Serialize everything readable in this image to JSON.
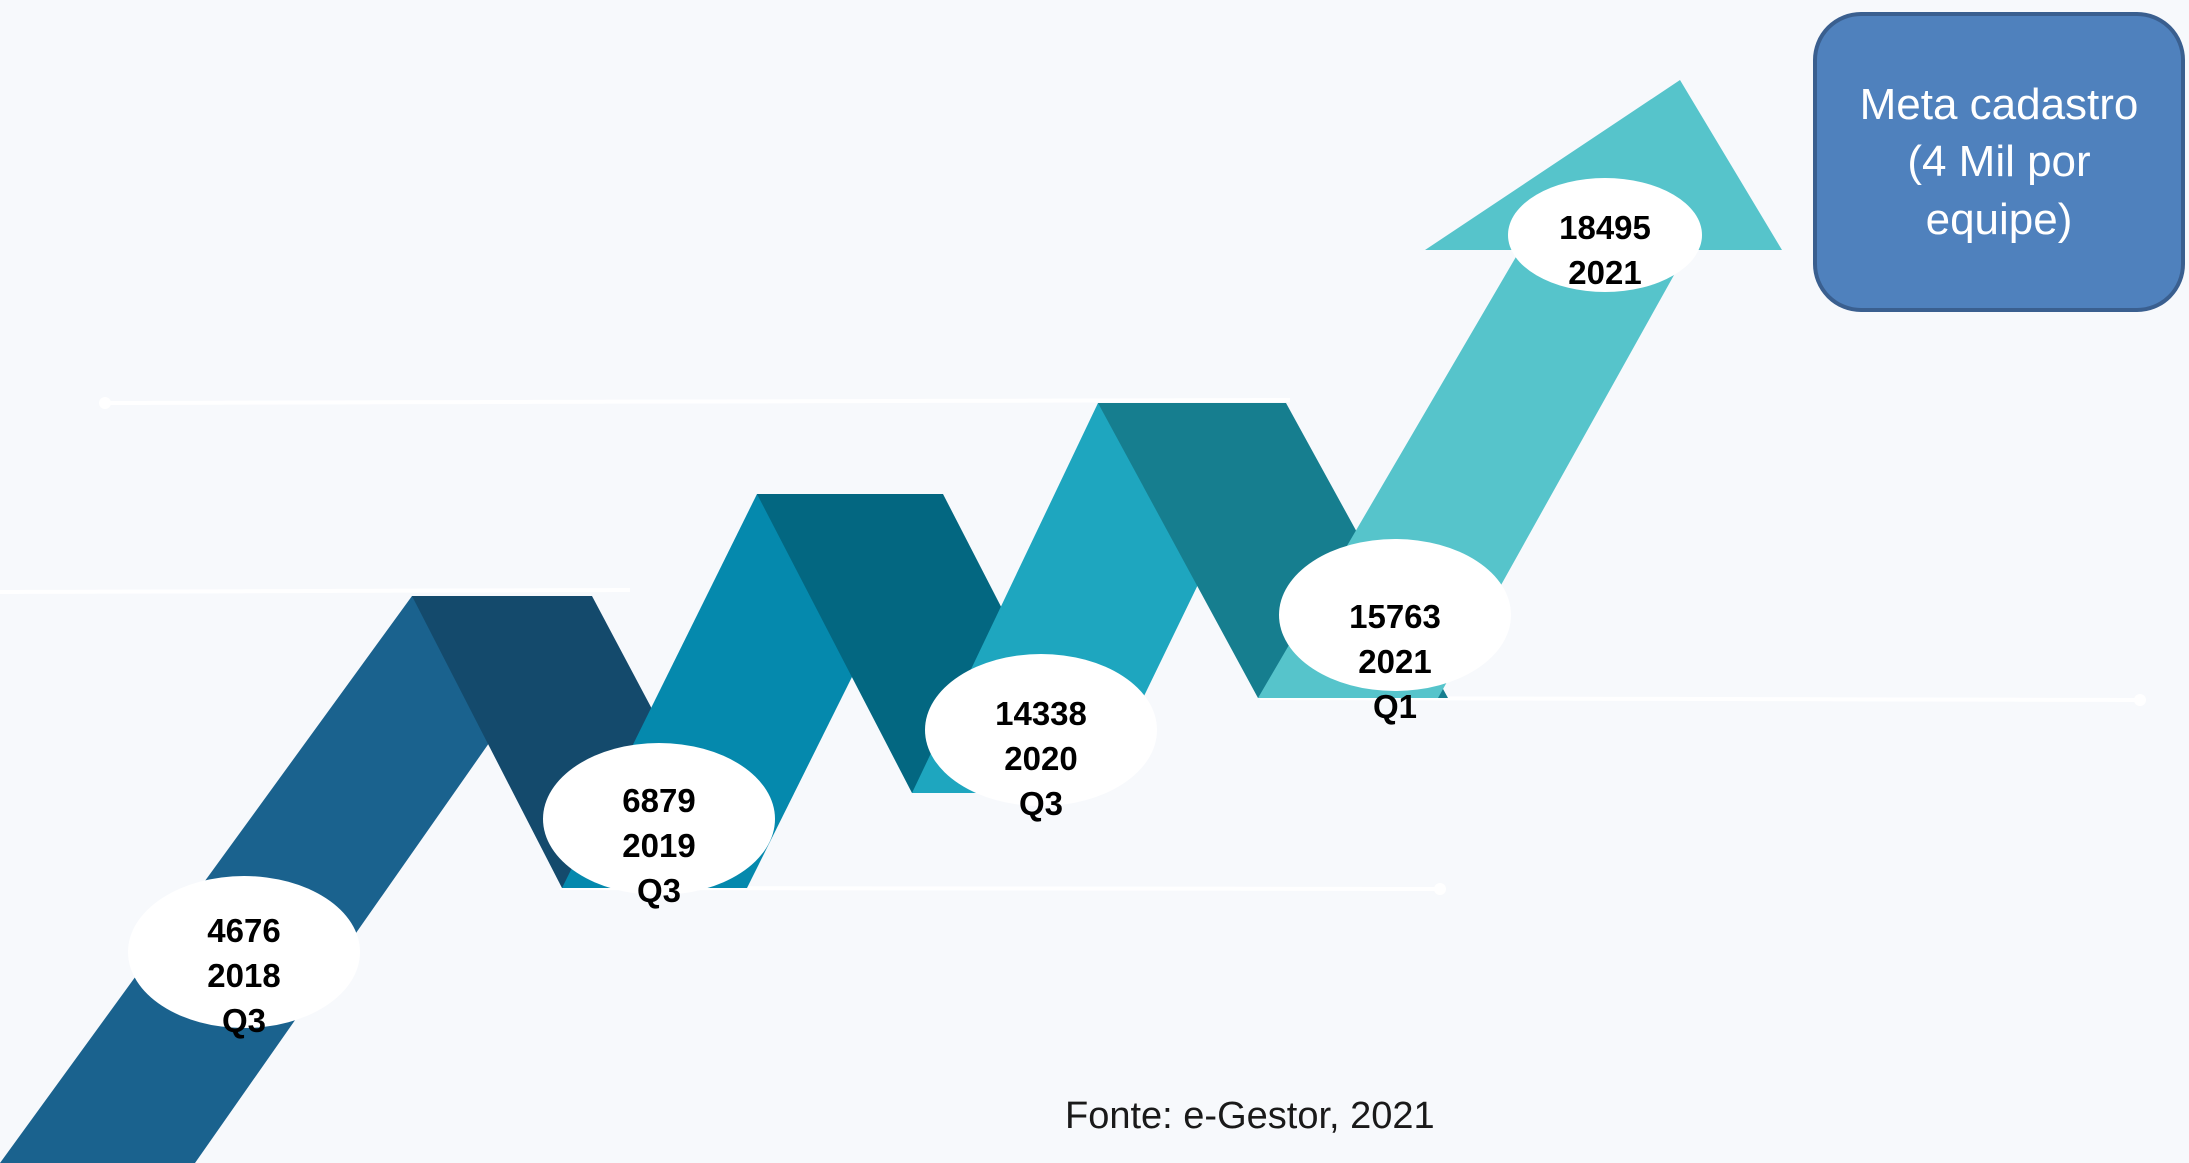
{
  "colors": {
    "background": "#f7f9fc",
    "band1": "#1a628e",
    "band1_fold": "#144a6c",
    "band2": "#0589ad",
    "band2_fold": "#036781",
    "band3": "#1ea6bf",
    "band3_fold": "#167e8f",
    "band4": "#56c4cb",
    "goal_box": "#4f81bd",
    "guide_line": "#ffffff"
  },
  "milestones": [
    {
      "value": "4676",
      "year": "2018",
      "quarter": "Q3"
    },
    {
      "value": "6879",
      "year": "2019",
      "quarter": "Q3"
    },
    {
      "value": "14338",
      "year": "2020",
      "quarter": "Q3"
    },
    {
      "value": "15763",
      "year": "2021",
      "quarter": "Q1"
    },
    {
      "value": "18495",
      "year": "2021",
      "quarter": ""
    }
  ],
  "goal": {
    "line1": "Meta cadastro",
    "line2": "(4 Mil por",
    "line3": "equipe)"
  },
  "source": "Fonte: e-Gestor, 2021"
}
